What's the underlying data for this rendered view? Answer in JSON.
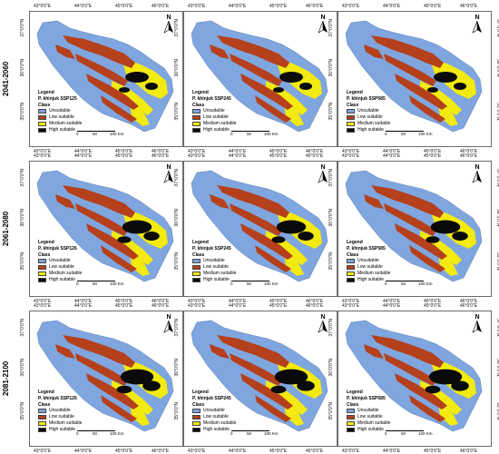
{
  "row_labels": [
    "2041-2060",
    "2061-2080",
    "2081-2100"
  ],
  "lon_ticks": [
    "43°0'0\"E",
    "44°0'0\"E",
    "45°0'0\"E",
    "46°0'0\"E"
  ],
  "lat_ticks_left": [
    "37°0'0\"N",
    "36°0'0\"N",
    "35°0'0\"N"
  ],
  "lat_ticks_right": [
    "37°0'0\"N",
    "36°0'0\"N",
    "35°0'0\"N"
  ],
  "panels": [
    {
      "species": "P. khinjuk",
      "scenario": "SSP125"
    },
    {
      "species": "P. khinjuk",
      "scenario": "SSP245"
    },
    {
      "species": "P. khinjuk",
      "scenario": "SSP585"
    },
    {
      "species": "P. khinjuk",
      "scenario": "SSP126"
    },
    {
      "species": "P. khinjuk",
      "scenario": "SSP245"
    },
    {
      "species": "P. khinjuk",
      "scenario": "SSP585"
    },
    {
      "species": "P. khinjuk",
      "scenario": "SSP126"
    },
    {
      "species": "P. khinjuk",
      "scenario": "SSP245"
    },
    {
      "species": "P. khinjuk",
      "scenario": "SSP585"
    }
  ],
  "legend": {
    "title": "Legend",
    "class_label": "Class",
    "classes": [
      {
        "label": "Unsuitable",
        "color": "#7fa6df"
      },
      {
        "label": "Low suitable",
        "color": "#b5401c"
      },
      {
        "label": "Medium suitable",
        "color": "#f2ea10"
      },
      {
        "label": "High suitable",
        "color": "#0a0a0a"
      }
    ]
  },
  "scale_bar": {
    "labels": [
      "0",
      "50",
      "100 Km"
    ]
  },
  "north_arrow": {
    "label": "N"
  },
  "colors": {
    "base": "#7fa6df",
    "low": "#b5401c",
    "medium": "#f2ea10",
    "high": "#0a0a0a"
  },
  "high_extent_by_row": [
    1,
    1.25,
    1.4
  ]
}
